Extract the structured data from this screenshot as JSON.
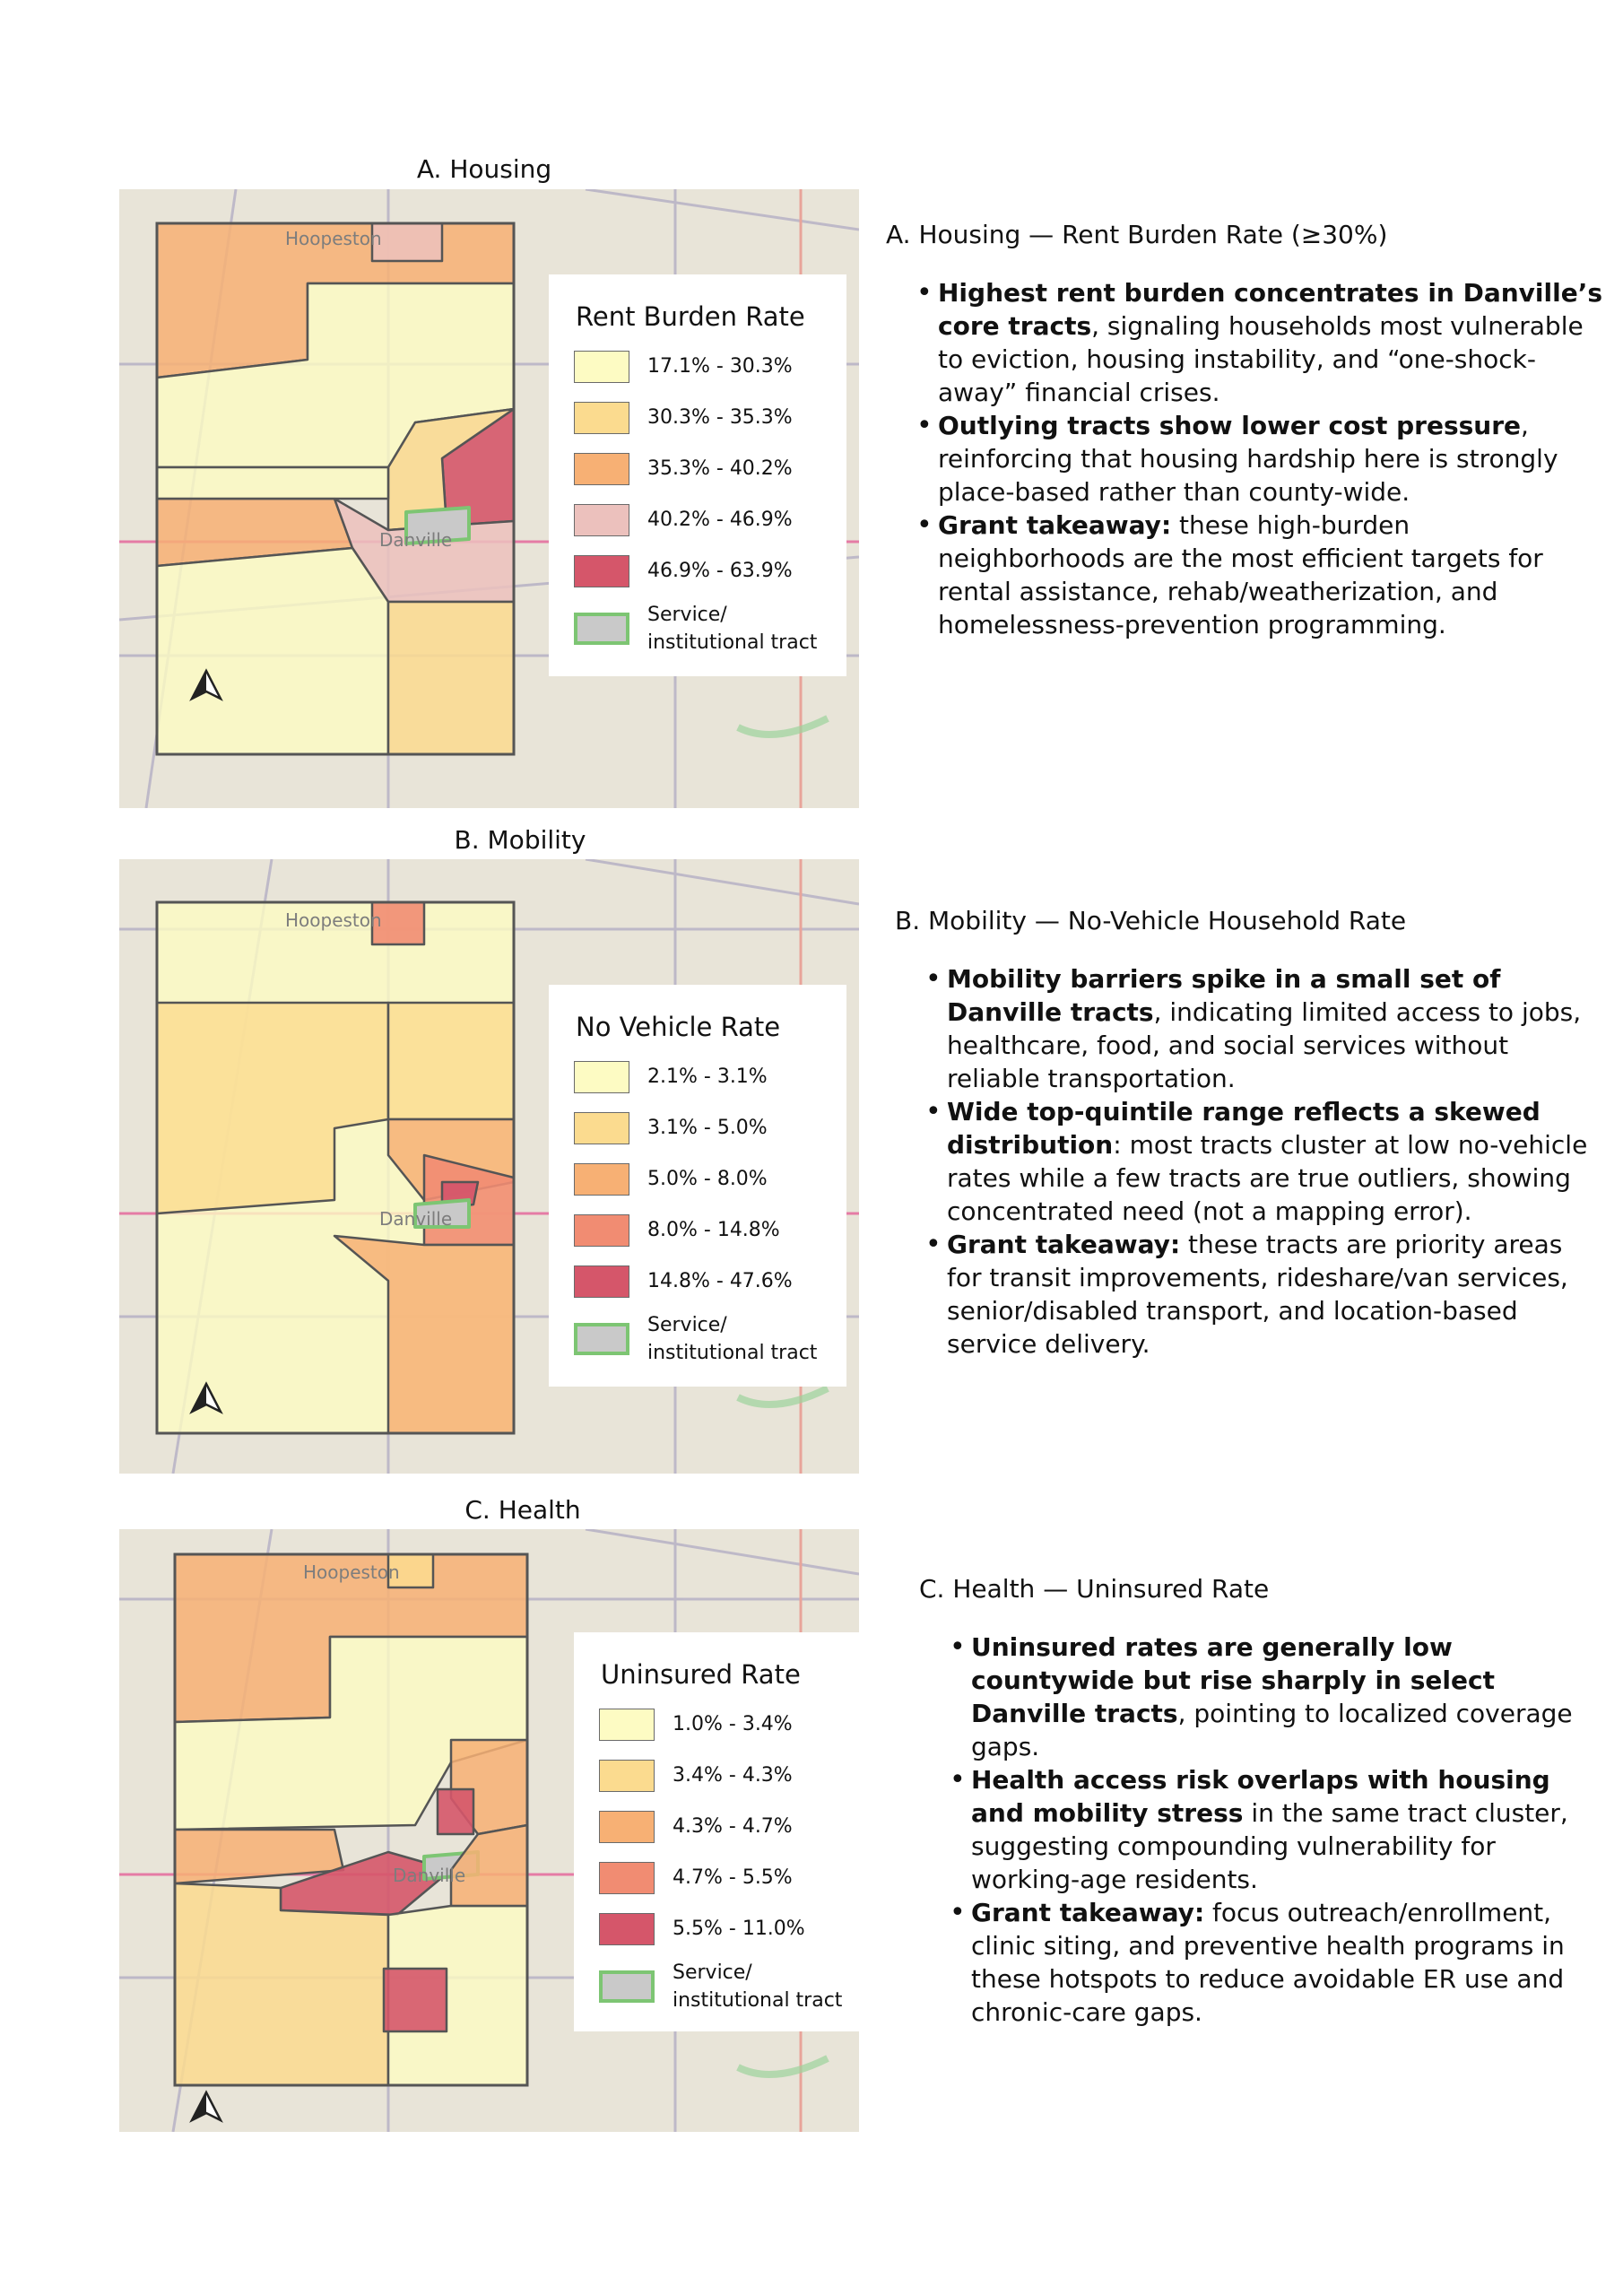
{
  "panels": [
    {
      "key": "housing",
      "title": "A. Housing",
      "map_labels": {
        "north": "Hoopeston",
        "city": "Danville"
      },
      "legend": {
        "title": "Rent Burden Rate",
        "classes": [
          {
            "label": "17.1% - 30.3%",
            "color": "#fdfbc3"
          },
          {
            "label": "30.3% - 35.3%",
            "color": "#fbdb8f"
          },
          {
            "label": "35.3% - 40.2%",
            "color": "#f7b074"
          },
          {
            "label": "40.2% - 46.9%",
            "color": "#ecc1bd"
          },
          {
            "label": "46.9% - 63.9%",
            "color": "#d5566a"
          }
        ],
        "service_label_1": "Service/",
        "service_label_2": "institutional tract",
        "service_color": "#c9c9c9",
        "service_outline": "#7dc573"
      },
      "heading": "A. Housing — Rent Burden Rate (≥30%)",
      "bullets": [
        {
          "bold": "Highest rent burden concentrates in Danville’s core tracts",
          "text": ", signaling households most vulnerable to eviction, housing instability, and “one-shock-away” financial crises."
        },
        {
          "bold": "Outlying tracts show lower cost pressure",
          "text": ", reinforcing that housing hardship here is strongly place-based rather than county-wide."
        },
        {
          "bold": "Grant takeaway:",
          "text": " these high-burden neighborhoods are the most efficient targets for rental assistance, rehab/weatherization, and homelessness-prevention programming."
        }
      ]
    },
    {
      "key": "mobility",
      "title": "B. Mobility",
      "map_labels": {
        "north": "Hoopeston",
        "city": "Danville"
      },
      "legend": {
        "title": "No Vehicle Rate",
        "classes": [
          {
            "label": "2.1% - 3.1%",
            "color": "#fdfbc3"
          },
          {
            "label": "3.1% - 5.0%",
            "color": "#fbdb8f"
          },
          {
            "label": "5.0% - 8.0%",
            "color": "#f7b074"
          },
          {
            "label": "8.0% - 14.8%",
            "color": "#f18c72"
          },
          {
            "label": "14.8% - 47.6%",
            "color": "#d5566a"
          }
        ],
        "service_label_1": "Service/",
        "service_label_2": "institutional tract",
        "service_color": "#c9c9c9",
        "service_outline": "#7dc573"
      },
      "heading": "B. Mobility — No-Vehicle Household Rate",
      "bullets": [
        {
          "bold": "Mobility barriers spike in a small set of Danville tracts",
          "text": ", indicating limited access to jobs, healthcare, food, and social services without reliable transportation."
        },
        {
          "bold": "Wide top-quintile range reflects a skewed distribution",
          "text": ": most tracts cluster at low no-vehicle rates while a few tracts are true outliers, showing concentrated need (not a mapping error)."
        },
        {
          "bold": "Grant takeaway:",
          "text": " these tracts are priority areas for transit improvements, rideshare/van services, senior/disabled transport, and location-based service delivery."
        }
      ]
    },
    {
      "key": "health",
      "title": "C. Health",
      "map_labels": {
        "north": "Hoopeston",
        "city": "Danville"
      },
      "legend": {
        "title": "Uninsured Rate",
        "classes": [
          {
            "label": "1.0% - 3.4%",
            "color": "#fdfbc3"
          },
          {
            "label": "3.4% - 4.3%",
            "color": "#fbdb8f"
          },
          {
            "label": "4.3% - 4.7%",
            "color": "#f7b074"
          },
          {
            "label": "4.7% - 5.5%",
            "color": "#f18c72"
          },
          {
            "label": "5.5% - 11.0%",
            "color": "#d5566a"
          }
        ],
        "service_label_1": "Service/",
        "service_label_2": "institutional tract",
        "service_color": "#c9c9c9",
        "service_outline": "#7dc573"
      },
      "heading": "C. Health — Uninsured Rate",
      "bullets": [
        {
          "bold": "Uninsured rates are generally low countywide but rise sharply in select Danville tracts",
          "text": ", pointing to localized coverage gaps."
        },
        {
          "bold": "Health access risk overlaps with housing and mobility stress",
          "text": " in the same tract cluster, suggesting compounding vulnerability for working-age residents."
        },
        {
          "bold": "Grant takeaway:",
          "text": " focus outreach/enrollment, clinic siting, and preventive health programs in these hotspots to reduce avoidable ER use and chronic-care gaps."
        }
      ]
    }
  ]
}
